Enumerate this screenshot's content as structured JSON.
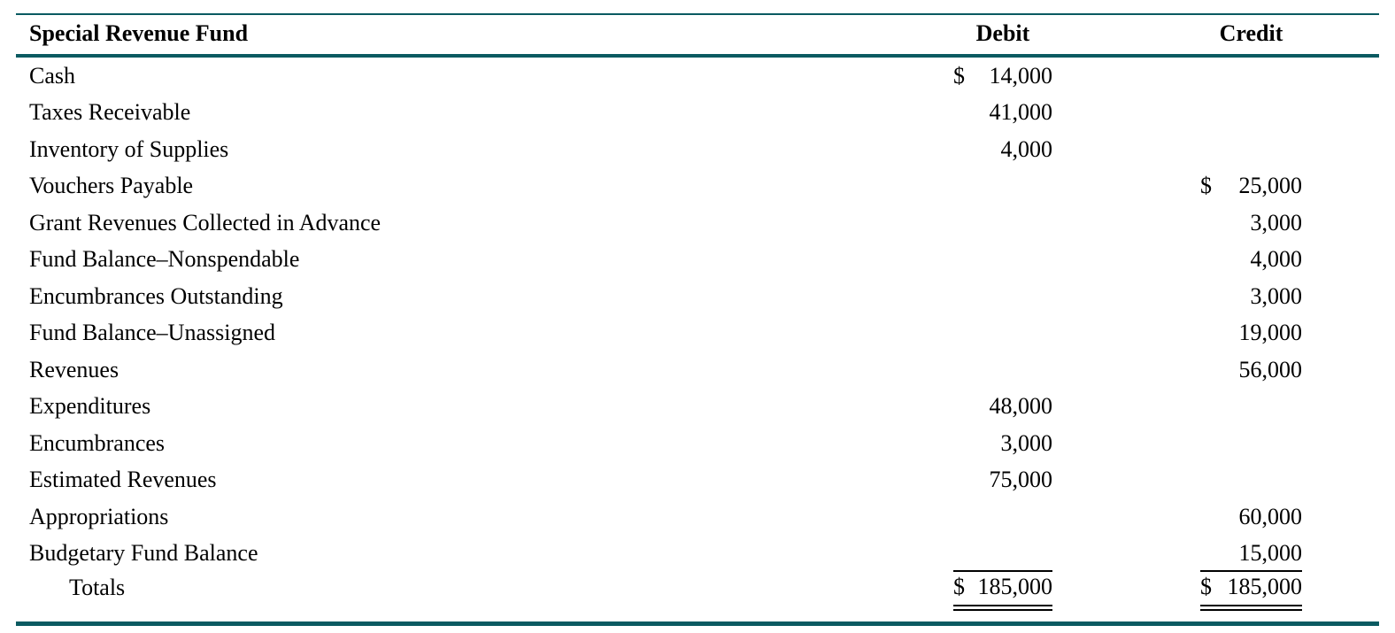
{
  "table": {
    "title": "Special Revenue Fund",
    "accent_color": "#0a5a61",
    "columns": {
      "debit": "Debit",
      "credit": "Credit"
    },
    "rows": [
      {
        "account": "Cash",
        "debit_symbol": "$",
        "debit": "14,000",
        "credit_symbol": "",
        "credit": ""
      },
      {
        "account": "Taxes Receivable",
        "debit_symbol": "",
        "debit": "41,000",
        "credit_symbol": "",
        "credit": ""
      },
      {
        "account": "Inventory of Supplies",
        "debit_symbol": "",
        "debit": "4,000",
        "credit_symbol": "",
        "credit": ""
      },
      {
        "account": "Vouchers Payable",
        "debit_symbol": "",
        "debit": "",
        "credit_symbol": "$",
        "credit": "25,000"
      },
      {
        "account": "Grant Revenues Collected in Advance",
        "debit_symbol": "",
        "debit": "",
        "credit_symbol": "",
        "credit": "3,000"
      },
      {
        "account": "Fund Balance–Nonspendable",
        "debit_symbol": "",
        "debit": "",
        "credit_symbol": "",
        "credit": "4,000"
      },
      {
        "account": "Encumbrances Outstanding",
        "debit_symbol": "",
        "debit": "",
        "credit_symbol": "",
        "credit": "3,000"
      },
      {
        "account": "Fund Balance–Unassigned",
        "debit_symbol": "",
        "debit": "",
        "credit_symbol": "",
        "credit": "19,000"
      },
      {
        "account": "Revenues",
        "debit_symbol": "",
        "debit": "",
        "credit_symbol": "",
        "credit": "56,000"
      },
      {
        "account": "Expenditures",
        "debit_symbol": "",
        "debit": "48,000",
        "credit_symbol": "",
        "credit": ""
      },
      {
        "account": "Encumbrances",
        "debit_symbol": "",
        "debit": "3,000",
        "credit_symbol": "",
        "credit": ""
      },
      {
        "account": "Estimated Revenues",
        "debit_symbol": "",
        "debit": "75,000",
        "credit_symbol": "",
        "credit": ""
      },
      {
        "account": "Appropriations",
        "debit_symbol": "",
        "debit": "",
        "credit_symbol": "",
        "credit": "60,000"
      },
      {
        "account": "Budgetary Fund Balance",
        "debit_symbol": "",
        "debit": "",
        "credit_symbol": "",
        "credit": "15,000",
        "rule_below": true
      },
      {
        "account": "Totals",
        "debit_symbol": "$",
        "debit": "185,000",
        "credit_symbol": "$",
        "credit": "185,000",
        "is_total": true,
        "indent": true
      }
    ]
  }
}
